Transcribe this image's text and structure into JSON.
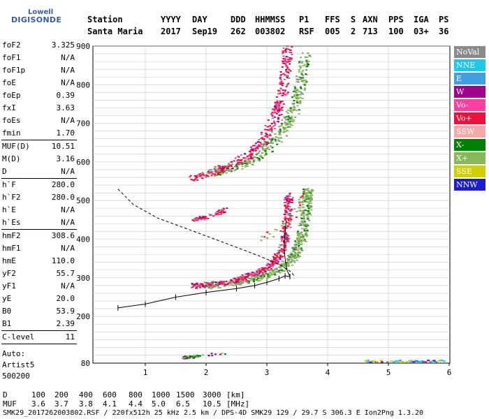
{
  "logo": {
    "brand": "Lowell",
    "product": "DIGISONDE"
  },
  "header": {
    "labels": [
      "Station",
      "YYYY",
      "DAY",
      "DDD",
      "HHMMSS",
      "P1",
      "FFS",
      "S",
      "AXN",
      "PPS",
      "IGA",
      "PS"
    ],
    "values": [
      "Santa Maria",
      "2017",
      "Sep19",
      "262",
      "003802",
      "RSF",
      "005",
      "2",
      "713",
      "100",
      "03+",
      "36"
    ]
  },
  "params_group1": [
    {
      "key": "foF2",
      "value": "3.325"
    },
    {
      "key": "foF1",
      "value": "N/A"
    },
    {
      "key": "foF1p",
      "value": "N/A"
    },
    {
      "key": "foE",
      "value": "N/A"
    },
    {
      "key": "foEp",
      "value": "0.39"
    },
    {
      "key": "fxI",
      "value": "3.63"
    },
    {
      "key": "foEs",
      "value": "N/A"
    },
    {
      "key": "fmin",
      "value": "1.70"
    }
  ],
  "params_group2": [
    {
      "key": "MUF(D)",
      "value": "10.51"
    },
    {
      "key": "M(D)",
      "value": "3.16"
    },
    {
      "key": "D",
      "value": "N/A"
    }
  ],
  "params_group3": [
    {
      "key": "h`F",
      "value": "280.0"
    },
    {
      "key": "h`F2",
      "value": "280.0"
    },
    {
      "key": "h`E",
      "value": "N/A"
    },
    {
      "key": "h`Es",
      "value": "N/A"
    }
  ],
  "params_group4": [
    {
      "key": "hmF2",
      "value": "308.6"
    },
    {
      "key": "hmF1",
      "value": "N/A"
    },
    {
      "key": "hmE",
      "value": "110.0"
    },
    {
      "key": "yF2",
      "value": "55.7"
    },
    {
      "key": "yF1",
      "value": "N/A"
    },
    {
      "key": "yE",
      "value": "20.0"
    },
    {
      "key": "B0",
      "value": "53.9"
    },
    {
      "key": "B1",
      "value": "2.39"
    }
  ],
  "params_group5": [
    {
      "key": "C-level",
      "value": "11"
    }
  ],
  "auto": [
    "Auto:",
    "Artist5",
    "500200"
  ],
  "legend": [
    {
      "label": "NoVal",
      "color": "#8a8a8a"
    },
    {
      "label": "NNE",
      "color": "#1ec8e8"
    },
    {
      "label": "E",
      "color": "#3ea0e0"
    },
    {
      "label": "W",
      "color": "#a0008c"
    },
    {
      "label": "Vo-",
      "color": "#ff40a0"
    },
    {
      "label": "Vo+",
      "color": "#f0103c"
    },
    {
      "label": "SSW",
      "color": "#f4a8a8"
    },
    {
      "label": "X-",
      "color": "#008000"
    },
    {
      "label": "X+",
      "color": "#88b858"
    },
    {
      "label": "SSE",
      "color": "#d0d000"
    },
    {
      "label": "NNW",
      "color": "#1c1cd0"
    }
  ],
  "footer": {
    "row_d_label": "D",
    "row_d_values": [
      "100",
      "200",
      "400",
      "600",
      "800",
      "1000",
      "1500",
      "3000"
    ],
    "row_d_unit": "[km]",
    "row_muf_label": "MUF",
    "row_muf_values": [
      "3.6",
      "3.7",
      "3.8",
      "4.1",
      "4.4",
      "5.0",
      "6.5",
      "10.5"
    ],
    "row_muf_unit": "[MHz]",
    "file_info": "SMK29_2017262003802.RSF / 220fx512h 25 kHz 2.5 km / DPS-4D SMK29 129 / 29.7 S 306.3 E Ion2Png 1.3.20"
  },
  "chart_data": {
    "type": "scatter",
    "x_ticks": [
      1,
      2,
      3,
      4,
      5,
      6
    ],
    "y_ticks": [
      80,
      200,
      300,
      400,
      500,
      600,
      700,
      800,
      900
    ],
    "xlim": [
      0.55,
      6.0
    ],
    "ylim": [
      80,
      900
    ],
    "grid": true,
    "legend_position": "right",
    "traces": [
      {
        "class": "O-trace",
        "points": [
          [
            1.75,
            280
          ],
          [
            2.2,
            287
          ],
          [
            2.6,
            300
          ],
          [
            2.9,
            318
          ],
          [
            3.1,
            340
          ],
          [
            3.25,
            380
          ],
          [
            3.3,
            420
          ],
          [
            3.33,
            480
          ],
          [
            3.35,
            520
          ]
        ]
      },
      {
        "class": "X-trace",
        "points": [
          [
            2.0,
            280
          ],
          [
            2.5,
            290
          ],
          [
            2.9,
            303
          ],
          [
            3.2,
            322
          ],
          [
            3.45,
            360
          ],
          [
            3.55,
            400
          ],
          [
            3.62,
            450
          ],
          [
            3.65,
            500
          ],
          [
            3.67,
            530
          ]
        ]
      },
      {
        "class": "O-multihop",
        "points": [
          [
            1.75,
            560
          ],
          [
            2.2,
            580
          ],
          [
            2.6,
            610
          ],
          [
            2.9,
            650
          ],
          [
            3.1,
            710
          ],
          [
            3.25,
            780
          ],
          [
            3.3,
            850
          ],
          [
            3.33,
            900
          ]
        ]
      },
      {
        "class": "X-multihop",
        "points": [
          [
            2.0,
            570
          ],
          [
            2.5,
            590
          ],
          [
            2.9,
            620
          ],
          [
            3.2,
            670
          ],
          [
            3.45,
            740
          ],
          [
            3.55,
            810
          ],
          [
            3.62,
            880
          ]
        ]
      },
      {
        "class": "O-fragment",
        "points": [
          [
            1.75,
            450
          ],
          [
            2.05,
            462
          ],
          [
            2.3,
            478
          ]
        ]
      },
      {
        "class": "Es-low",
        "points": [
          [
            1.6,
            95
          ],
          [
            1.75,
            97
          ],
          [
            1.9,
            100
          ],
          [
            2.3,
            105
          ]
        ]
      },
      {
        "class": "spread-high",
        "points": [
          [
            2.9,
            400
          ],
          [
            3.4,
            450
          ],
          [
            3.6,
            520
          ]
        ]
      }
    ],
    "profile_curve": [
      [
        0.55,
        222
      ],
      [
        1.0,
        232
      ],
      [
        1.5,
        250
      ],
      [
        2.0,
        262
      ],
      [
        2.5,
        272
      ],
      [
        2.8,
        280
      ],
      [
        3.0,
        288
      ],
      [
        3.2,
        298
      ],
      [
        3.3,
        305
      ],
      [
        3.38,
        303
      ]
    ],
    "profile_upper": [
      [
        3.38,
        303
      ],
      [
        3.33,
        320
      ],
      [
        3.3,
        350
      ],
      [
        3.28,
        380
      ],
      [
        3.3,
        420
      ],
      [
        3.32,
        450
      ]
    ],
    "dashed_curve": [
      [
        0.55,
        530
      ],
      [
        0.8,
        490
      ],
      [
        1.2,
        455
      ],
      [
        1.8,
        420
      ],
      [
        2.4,
        385
      ],
      [
        2.9,
        355
      ],
      [
        3.2,
        335
      ],
      [
        3.4,
        315
      ],
      [
        3.45,
        305
      ]
    ]
  }
}
